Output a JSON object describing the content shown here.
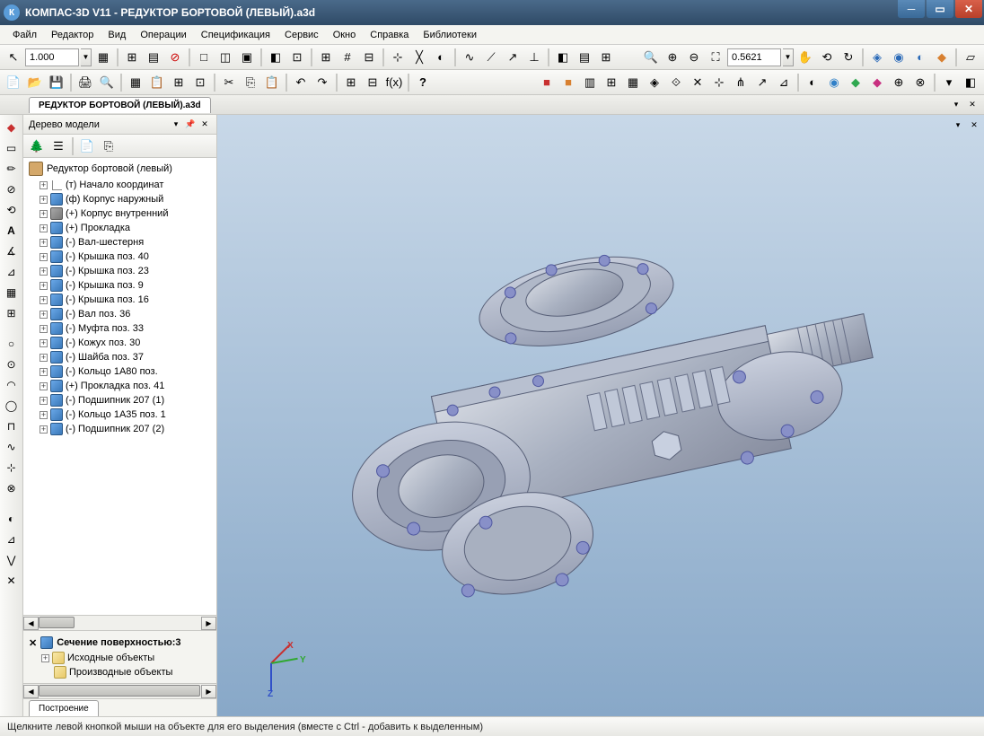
{
  "window": {
    "title": "КОМПАС-3D V11 - РЕДУКТОР БОРТОВОЙ (ЛЕВЫЙ).a3d",
    "app_icon_letter": "К"
  },
  "menu": {
    "items": [
      "Файл",
      "Редактор",
      "Вид",
      "Операции",
      "Спецификация",
      "Сервис",
      "Окно",
      "Справка",
      "Библиотеки"
    ]
  },
  "toolbar1": {
    "scale_value": "1.000",
    "zoom_value": "0.5621"
  },
  "document_tab": "РЕДУКТОР БОРТОВОЙ (ЛЕВЫЙ).a3d",
  "model_tree": {
    "panel_title": "Дерево модели",
    "root": "Редуктор бортовой (левый)",
    "items": [
      {
        "exp": "+",
        "icon": "line",
        "label": "(т) Начало координат"
      },
      {
        "exp": "+",
        "icon": "blue",
        "label": "(ф) Корпус наружный"
      },
      {
        "exp": "+",
        "icon": "gray",
        "label": "(+) Корпус внутренний"
      },
      {
        "exp": "+",
        "icon": "blue",
        "label": "(+) Прокладка"
      },
      {
        "exp": "+",
        "icon": "blue",
        "label": "(-) Вал-шестерня"
      },
      {
        "exp": "+",
        "icon": "blue",
        "label": "(-) Крышка поз. 40"
      },
      {
        "exp": "+",
        "icon": "blue",
        "label": "(-) Крышка поз. 23"
      },
      {
        "exp": "+",
        "icon": "blue",
        "label": "(-) Крышка поз. 9"
      },
      {
        "exp": "+",
        "icon": "blue",
        "label": "(-) Крышка поз. 16"
      },
      {
        "exp": "+",
        "icon": "blue",
        "label": "(-) Вал поз. 36"
      },
      {
        "exp": "+",
        "icon": "blue",
        "label": "(-) Муфта поз. 33"
      },
      {
        "exp": "+",
        "icon": "blue",
        "label": "(-) Кожух поз. 30"
      },
      {
        "exp": "+",
        "icon": "blue",
        "label": "(-) Шайба поз. 37"
      },
      {
        "exp": "+",
        "icon": "blue",
        "label": "(-) Кольцо 1А80 поз."
      },
      {
        "exp": "+",
        "icon": "blue",
        "label": "(+) Прокладка поз. 41"
      },
      {
        "exp": "+",
        "icon": "blue",
        "label": "(-) Подшипник 207 (1)"
      },
      {
        "exp": "+",
        "icon": "blue",
        "label": "(-) Кольцо 1А35 поз. 1"
      },
      {
        "exp": "+",
        "icon": "blue",
        "label": "(-) Подшипник 207 (2)"
      }
    ],
    "section_title": "Сечение поверхностью:3",
    "section_items": [
      {
        "exp": "+",
        "icon": "folder",
        "label": "Исходные объекты"
      },
      {
        "exp": "",
        "icon": "folder",
        "label": "Производные объекты"
      }
    ]
  },
  "bottom_tab": "Построение",
  "axis_labels": {
    "x": "X",
    "y": "Y",
    "z": "Z"
  },
  "statusbar": {
    "hint": "Щелкните левой кнопкой мыши на объекте для его выделения (вместе с Ctrl - добавить к выделенным)"
  },
  "styling": {
    "titlebar_gradient": [
      "#4a6a8a",
      "#2f4a66"
    ],
    "viewport_gradient": [
      "#c8d8e8",
      "#a8c0d8",
      "#88a8c8"
    ],
    "axis_colors": {
      "x": "#c83030",
      "y": "#30a830",
      "z": "#3050c8"
    },
    "tree_icon_blue": "#3a78b8",
    "tree_icon_gray": "#787878",
    "toolbar_bg": [
      "#fafaf8",
      "#e8e8e4"
    ]
  }
}
